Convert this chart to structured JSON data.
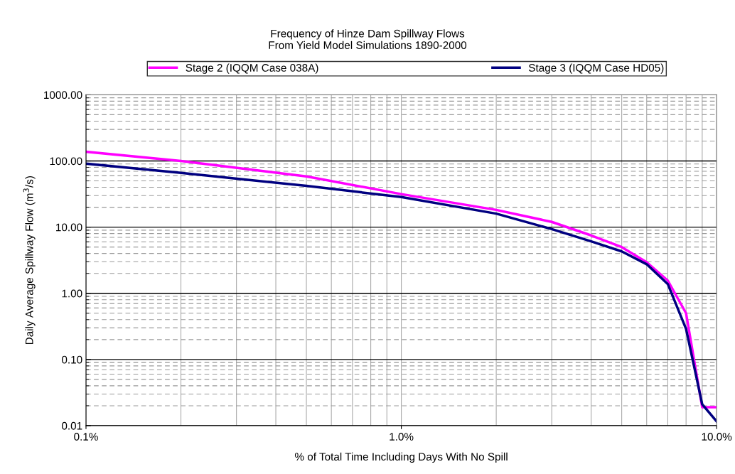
{
  "chart_data": {
    "type": "line",
    "title": "Frequency of Hinze Dam Spillway Flows\nFrom Yield Model Simulations 1890-2000",
    "xlabel": "% of Total Time Including Days With No Spill",
    "ylabel": "Daily Average Spillway Flow (m$^{3}$/s)",
    "x": [
      0.1,
      0.2,
      0.5,
      1,
      2,
      3,
      4,
      5,
      6,
      7,
      8,
      9,
      10
    ],
    "series": [
      {
        "name": "Stage 2 (IQQM Case 038A)",
        "color": "#ff00ff",
        "values": [
          138,
          100,
          58.5,
          31.6,
          18.2,
          12,
          7.5,
          5.0,
          2.95,
          1.56,
          0.5,
          0.019,
          0.019
        ]
      },
      {
        "name": "Stage 3 (IQQM Case HD05)",
        "color": "#000080",
        "values": [
          91,
          66,
          42,
          28.5,
          16,
          9.35,
          6.1,
          4.3,
          2.75,
          1.38,
          0.29,
          0.021,
          0.0116
        ]
      }
    ],
    "log": "xy",
    "xlim": [
      0.1,
      10
    ],
    "ylim": [
      0.01,
      1000
    ],
    "xticks": [
      {
        "value": 0.1,
        "label": "0.1%"
      },
      {
        "value": 1,
        "label": "1.0%"
      },
      {
        "value": 10,
        "label": "10.0%"
      }
    ],
    "yticks": [
      {
        "value": 0.01,
        "label": "0.01"
      },
      {
        "value": 0.1,
        "label": "0.10"
      },
      {
        "value": 1,
        "label": "1.00"
      },
      {
        "value": 10,
        "label": "10.00"
      },
      {
        "value": 100,
        "label": "100.00"
      },
      {
        "value": 1000,
        "label": "1000.00"
      }
    ],
    "grid": true,
    "legend": "top",
    "line_style": "solid"
  }
}
